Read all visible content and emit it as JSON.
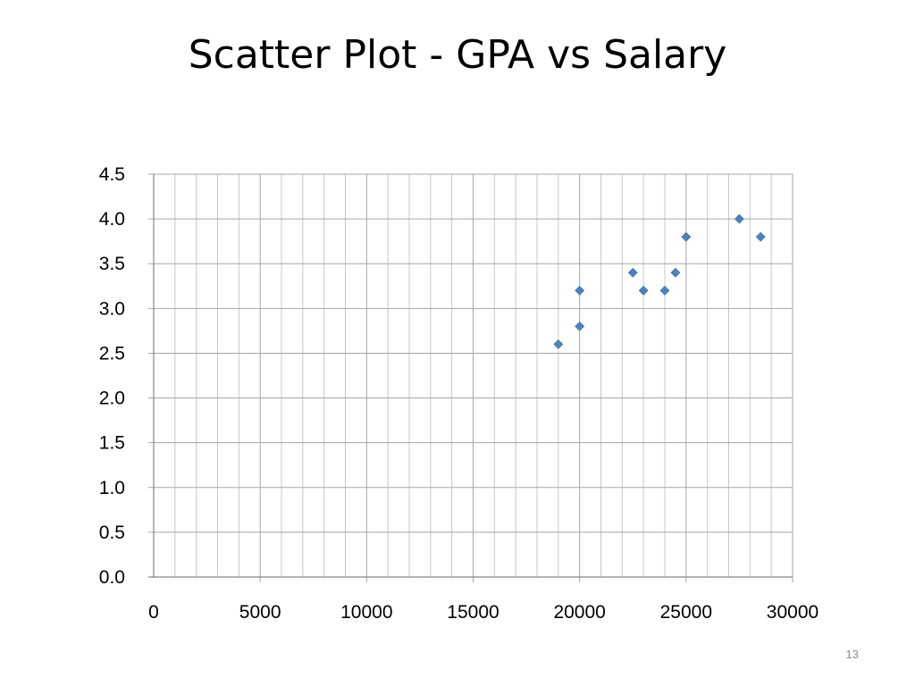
{
  "slide": {
    "title": "Scatter Plot - GPA vs Salary",
    "page_number": "13"
  },
  "colors": {
    "marker": "#4F81BD",
    "grid": "#A6A6A6",
    "axis": "#868686"
  },
  "chart_data": {
    "type": "scatter",
    "title": "",
    "xlabel": "",
    "ylabel": "",
    "xlim": [
      0,
      30000
    ],
    "ylim": [
      0,
      4.5
    ],
    "x_ticks": [
      "0",
      "5000",
      "10000",
      "15000",
      "20000",
      "25000",
      "30000"
    ],
    "y_ticks": [
      "0.0",
      "0.5",
      "1.0",
      "1.5",
      "2.0",
      "2.5",
      "3.0",
      "3.5",
      "4.0",
      "4.5"
    ],
    "grid": true,
    "marker": "diamond",
    "series": [
      {
        "points": [
          {
            "x": 19000,
            "y": 2.6
          },
          {
            "x": 20000,
            "y": 2.8
          },
          {
            "x": 20000,
            "y": 3.2
          },
          {
            "x": 22500,
            "y": 3.4
          },
          {
            "x": 23000,
            "y": 3.2
          },
          {
            "x": 24000,
            "y": 3.2
          },
          {
            "x": 24500,
            "y": 3.4
          },
          {
            "x": 25000,
            "y": 3.8
          },
          {
            "x": 27500,
            "y": 4.0
          },
          {
            "x": 28500,
            "y": 3.8
          }
        ]
      }
    ]
  }
}
